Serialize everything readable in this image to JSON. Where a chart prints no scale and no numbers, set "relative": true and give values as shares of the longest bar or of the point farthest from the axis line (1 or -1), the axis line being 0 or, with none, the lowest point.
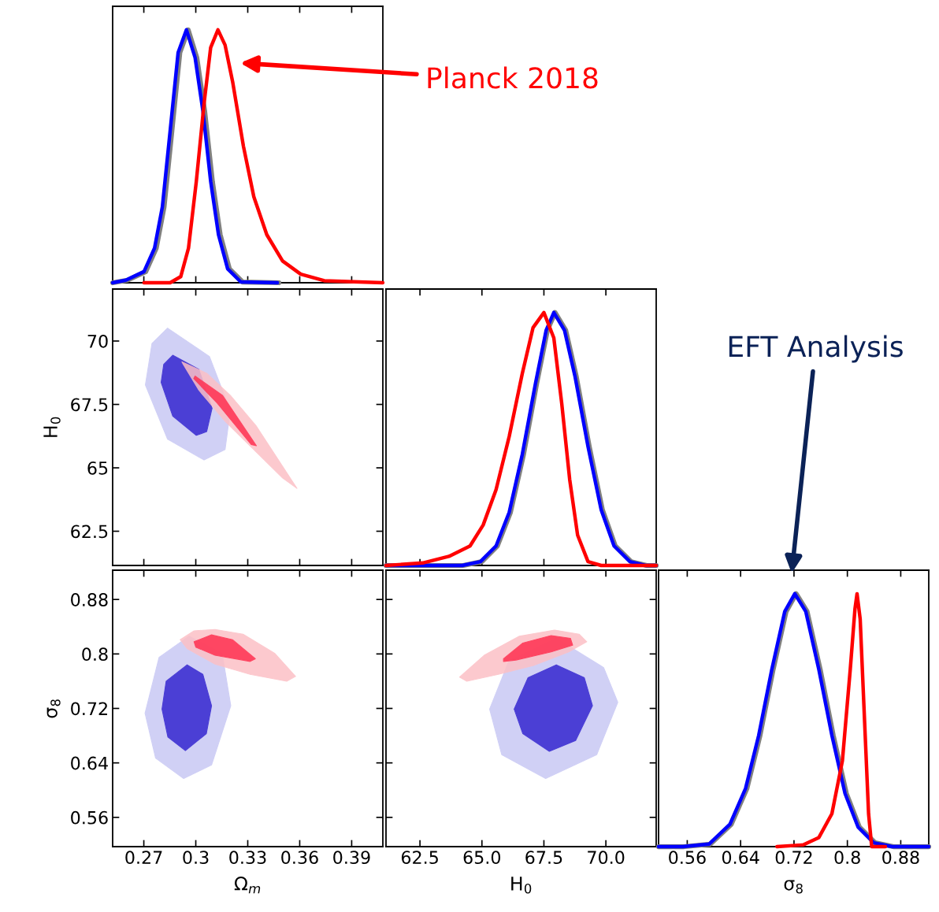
{
  "chart_data": [
    {
      "type": "line",
      "relative": true,
      "xlim": [
        0.252,
        0.408
      ],
      "xticks": [
        0.27,
        0.3,
        0.33,
        0.36,
        0.39
      ],
      "tick_labels": false,
      "line_style": "solid",
      "annotations": [
        "Planck 2018"
      ],
      "series": [
        {
          "color": "#808080",
          "x": [
            0.252,
            0.2606,
            0.2711,
            0.2772,
            0.2817,
            0.2862,
            0.2908,
            0.2956,
            0.3006,
            0.3051,
            0.3096,
            0.3141,
            0.3194,
            0.327,
            0.348
          ],
          "values": [
            0,
            0.01,
            0.044,
            0.137,
            0.3,
            0.6,
            0.91,
            1,
            0.89,
            0.68,
            0.4,
            0.19,
            0.055,
            0.003,
            0
          ]
        },
        {
          "color": "#0000ff",
          "x": [
            0.252,
            0.2596,
            0.2701,
            0.2762,
            0.2807,
            0.2852,
            0.2898,
            0.2946,
            0.2996,
            0.3041,
            0.3086,
            0.3131,
            0.3184,
            0.326,
            0.3471
          ],
          "values": [
            0,
            0.01,
            0.044,
            0.137,
            0.3,
            0.6,
            0.91,
            1,
            0.89,
            0.68,
            0.4,
            0.19,
            0.055,
            0.003,
            0
          ]
        },
        {
          "color": "#ff0000",
          "x": [
            0.2701,
            0.2852,
            0.2913,
            0.2958,
            0.3003,
            0.3048,
            0.3086,
            0.3128,
            0.3169,
            0.3214,
            0.3275,
            0.3335,
            0.341,
            0.3501,
            0.3606,
            0.3742,
            0.408
          ],
          "values": [
            0,
            0,
            0.024,
            0.137,
            0.4,
            0.71,
            0.93,
            1,
            0.94,
            0.79,
            0.54,
            0.34,
            0.19,
            0.086,
            0.034,
            0.008,
            0
          ]
        }
      ]
    },
    {
      "type": "area",
      "xlim": [
        0.252,
        0.408
      ],
      "xticks": [
        0.27,
        0.3,
        0.33,
        0.36,
        0.39
      ],
      "ylim": [
        61.15,
        72.05
      ],
      "yticks": [
        70,
        67.5,
        65,
        62.5
      ],
      "ylabel": "H$_{0}$",
      "tick_labels": "y",
      "series": [
        {
          "color": "#c8c8f4",
          "x": [
            0.2837,
            0.3079,
            0.3199,
            0.3169,
            0.3048,
            0.2837,
            0.2709,
            0.2747
          ],
          "values": [
            70.51,
            69.39,
            67.25,
            65.72,
            65.31,
            66.13,
            68.27,
            69.9
          ]
        },
        {
          "color": "#3426d0",
          "x": [
            0.2867,
            0.3018,
            0.3094,
            0.3063,
            0.3003,
            0.2867,
            0.28,
            0.2815
          ],
          "values": [
            69.44,
            68.88,
            67.35,
            66.43,
            66.28,
            67.04,
            68.37,
            69.08
          ]
        },
        {
          "color": "#fcc0c6",
          "x": [
            0.292,
            0.3063,
            0.3199,
            0.335,
            0.3584,
            0.3501,
            0.332,
            0.3169,
            0.3018,
            0.2928
          ],
          "values": [
            69.18,
            68.73,
            67.86,
            66.64,
            64.19,
            64.6,
            65.82,
            66.84,
            68.06,
            69.08
          ]
        },
        {
          "color": "#ff3050",
          "x": [
            0.2996,
            0.3154,
            0.335,
            0.332,
            0.3124,
            0.2988
          ],
          "values": [
            68.62,
            67.86,
            65.87,
            65.92,
            67.55,
            68.52
          ]
        }
      ]
    },
    {
      "type": "line",
      "relative": true,
      "xlim": [
        61.13,
        72.03
      ],
      "xticks": [
        62.5,
        65,
        67.5,
        70
      ],
      "tick_labels": false,
      "line_style": "solid",
      "series": [
        {
          "color": "#808080",
          "x": [
            61.13,
            64.25,
            64.99,
            65.62,
            66.15,
            66.68,
            67.21,
            67.64,
            67.95,
            68.38,
            68.8,
            69.33,
            69.86,
            70.38,
            71.02,
            71.65,
            72.03
          ],
          "values": [
            0,
            0,
            0.015,
            0.077,
            0.21,
            0.44,
            0.72,
            0.93,
            1,
            0.93,
            0.75,
            0.47,
            0.22,
            0.077,
            0.015,
            0,
            0
          ]
        },
        {
          "color": "#0000ff",
          "x": [
            61.13,
            64.2,
            64.94,
            65.57,
            66.1,
            66.63,
            67.16,
            67.59,
            67.9,
            68.33,
            68.75,
            69.28,
            69.81,
            70.33,
            70.97,
            71.6,
            72.03
          ],
          "values": [
            0,
            0,
            0.015,
            0.077,
            0.21,
            0.44,
            0.72,
            0.93,
            1,
            0.93,
            0.75,
            0.47,
            0.22,
            0.077,
            0.015,
            0,
            0
          ]
        },
        {
          "color": "#ff0000",
          "x": [
            61.13,
            62.61,
            63.67,
            64.52,
            65.05,
            65.57,
            66.1,
            66.63,
            67.06,
            67.5,
            67.9,
            68.22,
            68.54,
            68.86,
            69.28,
            69.81,
            72.03
          ],
          "values": [
            0,
            0.01,
            0.036,
            0.077,
            0.16,
            0.3,
            0.51,
            0.76,
            0.94,
            1,
            0.9,
            0.64,
            0.34,
            0.12,
            0.015,
            0,
            0
          ]
        }
      ]
    },
    {
      "type": "area",
      "xlim": [
        0.252,
        0.408
      ],
      "xticks": [
        0.27,
        0.3,
        0.33,
        0.36,
        0.39
      ],
      "ylim": [
        0.517,
        0.923
      ],
      "yticks": [
        0.88,
        0.8,
        0.72,
        0.64,
        0.56
      ],
      "xlabel": "Ω$_{m}$",
      "ylabel": "σ$_{8}$",
      "series": [
        {
          "color": "#c8c8f4",
          "x": [
            0.296,
            0.3152,
            0.3202,
            0.3091,
            0.293,
            0.2768,
            0.2707,
            0.2788
          ],
          "values": [
            0.826,
            0.801,
            0.724,
            0.637,
            0.617,
            0.647,
            0.713,
            0.795
          ]
        },
        {
          "color": "#3426d0",
          "x": [
            0.295,
            0.3041,
            0.3091,
            0.3061,
            0.294,
            0.2839,
            0.2805,
            0.2829
          ],
          "values": [
            0.784,
            0.77,
            0.724,
            0.683,
            0.658,
            0.678,
            0.719,
            0.76
          ]
        },
        {
          "color": "#fcc0c6",
          "x": [
            0.291,
            0.299,
            0.3111,
            0.3273,
            0.3455,
            0.3576,
            0.3525,
            0.3314,
            0.3111,
            0.295
          ],
          "values": [
            0.821,
            0.834,
            0.836,
            0.829,
            0.801,
            0.767,
            0.76,
            0.77,
            0.785,
            0.808
          ]
        },
        {
          "color": "#ff3050",
          "x": [
            0.299,
            0.3091,
            0.3212,
            0.3344,
            0.3314,
            0.3111,
            0.3
          ],
          "values": [
            0.818,
            0.828,
            0.821,
            0.793,
            0.789,
            0.798,
            0.81
          ]
        }
      ]
    },
    {
      "type": "area",
      "xlim": [
        61.13,
        72.03
      ],
      "xticks": [
        {
          "value": 62.5,
          "label": "62.5"
        },
        {
          "value": 65,
          "label": "65.0"
        },
        {
          "value": 67.5,
          "label": "67.5"
        },
        {
          "value": 70,
          "label": "70.0"
        }
      ],
      "ylim": [
        0.517,
        0.923
      ],
      "yticks": [
        0.88,
        0.8,
        0.72,
        0.64,
        0.56
      ],
      "xlabel": "H$_{0}$",
      "tick_labels": "x",
      "series": [
        {
          "color": "#c8c8f4",
          "x": [
            68.0,
            69.91,
            70.48,
            69.63,
            67.57,
            65.8,
            65.31,
            66.09
          ],
          "values": [
            0.823,
            0.78,
            0.729,
            0.652,
            0.617,
            0.652,
            0.719,
            0.79
          ]
        },
        {
          "color": "#3426d0",
          "x": [
            68.0,
            69.13,
            69.46,
            68.78,
            67.72,
            66.65,
            66.3,
            66.86
          ],
          "values": [
            0.784,
            0.765,
            0.724,
            0.673,
            0.657,
            0.683,
            0.719,
            0.765
          ]
        },
        {
          "color": "#fcc0c6",
          "x": [
            64.1,
            65.09,
            66.51,
            67.93,
            68.92,
            69.23,
            68.5,
            67.08,
            65.66,
            64.39
          ],
          "values": [
            0.766,
            0.798,
            0.826,
            0.835,
            0.829,
            0.818,
            0.803,
            0.783,
            0.77,
            0.76
          ]
        },
        {
          "color": "#ff3050",
          "x": [
            65.87,
            66.65,
            67.79,
            68.57,
            68.66,
            67.79,
            66.37,
            65.87
          ],
          "values": [
            0.793,
            0.816,
            0.827,
            0.823,
            0.813,
            0.803,
            0.791,
            0.789
          ]
        }
      ]
    },
    {
      "type": "line",
      "relative": true,
      "xlim": [
        0.517,
        0.922
      ],
      "xticks": [
        0.56,
        0.64,
        0.72,
        0.8,
        0.88
      ],
      "xlabel": "σ$_{8}$",
      "tick_labels": "x",
      "line_style": "solid",
      "annotations": [
        "EFT Analysis"
      ],
      "series": [
        {
          "color": "#808080",
          "x": [
            0.517,
            0.5553,
            0.5946,
            0.6259,
            0.6494,
            0.6691,
            0.6887,
            0.7082,
            0.7232,
            0.7396,
            0.7593,
            0.7788,
            0.7985,
            0.8181,
            0.8416,
            0.8691,
            0.922
          ],
          "values": [
            0,
            0,
            0.01,
            0.088,
            0.23,
            0.44,
            0.7,
            0.93,
            1,
            0.93,
            0.7,
            0.44,
            0.21,
            0.077,
            0.015,
            0,
            0
          ]
        },
        {
          "color": "#0000ff",
          "x": [
            0.517,
            0.5533,
            0.5926,
            0.6239,
            0.6474,
            0.6671,
            0.6867,
            0.7062,
            0.7212,
            0.7376,
            0.7573,
            0.7768,
            0.7965,
            0.8161,
            0.8396,
            0.8671,
            0.922
          ],
          "values": [
            0,
            0,
            0.01,
            0.088,
            0.23,
            0.44,
            0.7,
            0.93,
            1,
            0.93,
            0.7,
            0.44,
            0.21,
            0.077,
            0.015,
            0,
            0
          ]
        },
        {
          "color": "#ff0000",
          "x": [
            0.6945,
            0.7338,
            0.7573,
            0.7768,
            0.7926,
            0.8043,
            0.8114,
            0.8145,
            0.8192,
            0.8259,
            0.8318,
            0.8365,
            0.857
          ],
          "values": [
            0,
            0.007,
            0.036,
            0.13,
            0.34,
            0.7,
            0.94,
            1,
            0.9,
            0.49,
            0.13,
            0,
            0
          ]
        }
      ]
    }
  ]
}
